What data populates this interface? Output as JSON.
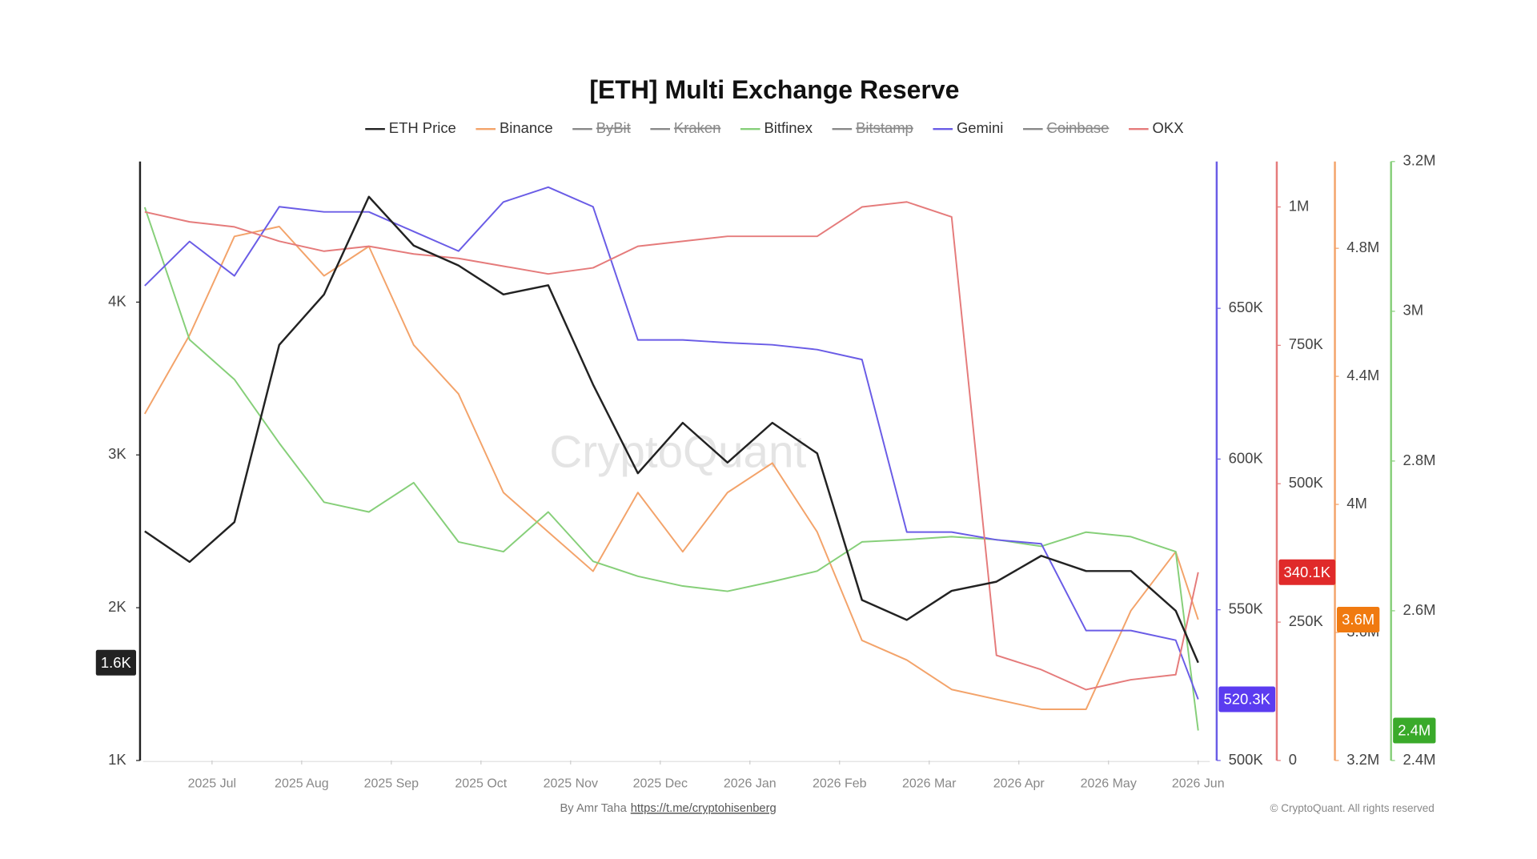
{
  "chart_data": {
    "type": "line",
    "title": "[ETH] Multi Exchange Reserve",
    "watermark": "CryptoQuant",
    "credit": "By Amr Taha",
    "credit_link": "https://t.me/cryptohisenberg",
    "copyright": "© CryptoQuant. All rights reserved",
    "x": [
      -0.75,
      -0.25,
      0.25,
      0.75,
      1.25,
      1.75,
      2.25,
      2.75,
      3.25,
      3.75,
      4.25,
      4.75,
      5.25,
      5.75,
      6.25,
      6.75,
      7.25,
      7.75,
      8.25,
      8.75,
      9.25,
      9.75,
      10.25,
      10.75,
      11.0
    ],
    "xlim": [
      -0.77,
      11.13
    ],
    "xticks": [
      {
        "value": 0,
        "label": "2025 Jul"
      },
      {
        "value": 1,
        "label": "2025 Aug"
      },
      {
        "value": 2,
        "label": "2025 Sep"
      },
      {
        "value": 3,
        "label": "2025 Oct"
      },
      {
        "value": 4,
        "label": "2025 Nov"
      },
      {
        "value": 5,
        "label": "2025 Dec"
      },
      {
        "value": 6,
        "label": "2026 Jan"
      },
      {
        "value": 7,
        "label": "2026 Feb"
      },
      {
        "value": 8,
        "label": "2026 Mar"
      },
      {
        "value": 9,
        "label": "2026 Apr"
      },
      {
        "value": 10,
        "label": "2026 May"
      },
      {
        "value": 11,
        "label": "2026 Jun"
      }
    ],
    "ylim": [
      1000,
      4920
    ],
    "yticks": [
      {
        "value": 1000,
        "label": "1K"
      },
      {
        "value": 2000,
        "label": "2K"
      },
      {
        "value": 3000,
        "label": "3K"
      },
      {
        "value": 4000,
        "label": "4K"
      }
    ],
    "y2lim": [
      500000,
      698700
    ],
    "y2ticks": [
      {
        "value": 500000,
        "label": "500K"
      },
      {
        "value": 550000,
        "label": "550K"
      },
      {
        "value": 600000,
        "label": "600K"
      },
      {
        "value": 650000,
        "label": "650K"
      }
    ],
    "y3lim": [
      0,
      1082000
    ],
    "y3ticks": [
      0,
      {
        "value": 250000,
        "label": "250K"
      },
      {
        "value": 500000,
        "label": "500K"
      },
      {
        "value": 750000,
        "label": "750K"
      },
      {
        "value": 1000000,
        "label": "1M"
      }
    ],
    "y4lim": [
      3200000,
      5071000
    ],
    "y4ticks": [
      {
        "value": 3200000,
        "label": "3.2M"
      },
      {
        "value": 3600000,
        "label": "3.6M"
      },
      {
        "value": 4000000,
        "label": "4M"
      },
      {
        "value": 4400000,
        "label": "4.4M"
      },
      {
        "value": 4800000,
        "label": "4.8M"
      }
    ],
    "y5lim": [
      2400000,
      3200000
    ],
    "y5ticks": [
      {
        "value": 2400000,
        "label": "2.4M"
      },
      {
        "value": 2600000,
        "label": "2.6M"
      },
      {
        "value": 2800000,
        "label": "2.8M"
      },
      {
        "value": 3000000,
        "label": "3M"
      },
      {
        "value": 3200000,
        "label": "3.2M"
      }
    ],
    "series": [
      {
        "name": "ETH Price",
        "color": "#222222",
        "axis": "y",
        "last_label": "1.6K",
        "values": [
          2500,
          2300,
          2560,
          3720,
          4050,
          4690,
          4370,
          4240,
          4050,
          4110,
          3460,
          2880,
          3210,
          2950,
          3210,
          3010,
          2050,
          1920,
          2110,
          2170,
          2340,
          2240,
          2240,
          1980,
          1640
        ]
      },
      {
        "name": "Binance",
        "color": "#f3a36a",
        "axis": "y4",
        "last_label": "3.6M",
        "badge_color": "#f07a10",
        "values": [
          4283000,
          4529000,
          4837000,
          4868000,
          4714000,
          4806000,
          4498000,
          4345000,
          4037000,
          3914000,
          3791000,
          4037000,
          3852000,
          4037000,
          4129000,
          3914000,
          3575000,
          3514000,
          3422000,
          3391000,
          3360000,
          3360000,
          3668000,
          3852000,
          3640000
        ]
      },
      {
        "name": "ByBit",
        "color": "#888888",
        "hidden": true
      },
      {
        "name": "Kraken",
        "color": "#888888",
        "hidden": true
      },
      {
        "name": "Bitfinex",
        "color": "#86cf79",
        "axis": "y5",
        "last_label": "2.4M",
        "badge_color": "#3aaa2a",
        "values": [
          3139000,
          2962000,
          2909000,
          2824000,
          2745000,
          2732000,
          2771000,
          2692000,
          2679000,
          2732000,
          2666000,
          2646000,
          2633000,
          2626000,
          2639000,
          2653000,
          2692000,
          2695000,
          2699000,
          2695000,
          2686000,
          2705000,
          2699000,
          2679000,
          2440000
        ]
      },
      {
        "name": "Bitstamp",
        "color": "#888888",
        "hidden": true
      },
      {
        "name": "Gemini",
        "color": "#6a5ce6",
        "axis": "y2",
        "last_label": "520.3K",
        "badge_color": "#5b3cf0",
        "values": [
          657500,
          672200,
          660800,
          683700,
          682000,
          682000,
          675500,
          669000,
          685300,
          690200,
          683700,
          639500,
          639500,
          638600,
          637900,
          636300,
          633000,
          575800,
          575800,
          573200,
          571900,
          543100,
          543100,
          539900,
          520300
        ]
      },
      {
        "name": "Coinbase",
        "color": "#888888",
        "hidden": true
      },
      {
        "name": "OKX",
        "color": "#e57b7b",
        "axis": "y3",
        "last_label": "340.1K",
        "badge_color": "#e02a2a",
        "values": [
          991000,
          973000,
          964000,
          938000,
          920000,
          929000,
          915000,
          907000,
          893000,
          879000,
          890000,
          929000,
          938000,
          947000,
          947000,
          947000,
          1000000,
          1009000,
          982000,
          190000,
          164000,
          128000,
          146000,
          155000,
          340100
        ]
      }
    ]
  }
}
